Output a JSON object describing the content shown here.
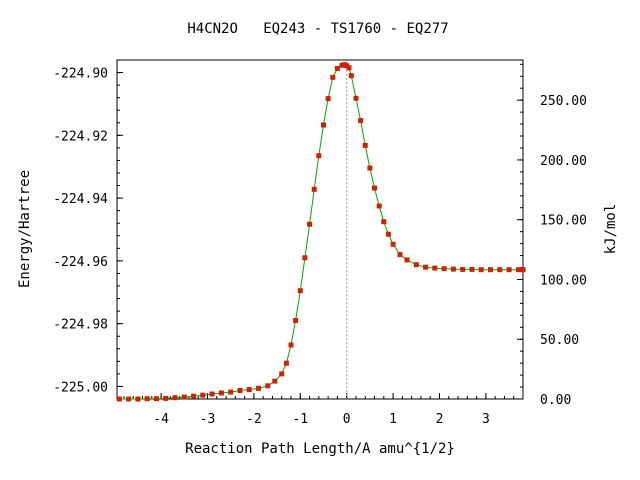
{
  "chart_data": {
    "type": "line",
    "title": "H4CN2O   EQ243 - TS1760 - EQ277",
    "xlabel": "Reaction Path Length/A amu^{1/2}",
    "ylabel_left": "Energy/Hartree",
    "ylabel_right": "kJ/mol",
    "xlim": [
      -4.95,
      3.8
    ],
    "ylim_left": [
      -225.004,
      -224.896
    ],
    "ylim_right": [
      0.0,
      283.6
    ],
    "x_ticks": [
      -4,
      -3,
      -2,
      -1,
      0,
      1,
      2,
      3
    ],
    "x_tick_labels": [
      "-4",
      "-3",
      "-2",
      "-1",
      "0",
      "1",
      "2",
      "3"
    ],
    "y_ticks_left": [
      -225.0,
      -224.98,
      -224.96,
      -224.94,
      -224.92,
      -224.9
    ],
    "y_tick_labels_left": [
      "-225.00",
      "-224.98",
      "-224.96",
      "-224.94",
      "-224.92",
      "-224.90"
    ],
    "y_ticks_right": [
      0,
      50,
      100,
      150,
      200,
      250
    ],
    "y_tick_labels_right": [
      "0.00",
      "50.00",
      "100.00",
      "150.00",
      "200.00",
      "250.00"
    ],
    "ts_x": 0.0,
    "series": [
      {
        "line_color": "#00aa00",
        "marker_color": "#cc2200",
        "x": [
          -4.9,
          -4.7,
          -4.5,
          -4.3,
          -4.1,
          -3.9,
          -3.7,
          -3.5,
          -3.3,
          -3.1,
          -2.9,
          -2.7,
          -2.5,
          -2.3,
          -2.1,
          -1.9,
          -1.7,
          -1.55,
          -1.4,
          -1.3,
          -1.2,
          -1.1,
          -1.0,
          -0.9,
          -0.8,
          -0.7,
          -0.6,
          -0.5,
          -0.4,
          -0.3,
          -0.2,
          -0.1,
          -0.05,
          0.0,
          0.05,
          0.1,
          0.2,
          0.3,
          0.4,
          0.5,
          0.6,
          0.7,
          0.8,
          0.9,
          1.0,
          1.15,
          1.3,
          1.5,
          1.7,
          1.9,
          2.1,
          2.3,
          2.5,
          2.7,
          2.9,
          3.1,
          3.3,
          3.5,
          3.7,
          3.8
        ],
        "y": [
          -225.004,
          -225.004,
          -225.004,
          -225.0039,
          -225.0039,
          -225.0038,
          -225.0036,
          -225.0034,
          -225.0031,
          -225.0028,
          -225.0024,
          -225.0021,
          -225.0018,
          -225.0013,
          -225.001,
          -225.0006,
          -224.9998,
          -224.9983,
          -224.996,
          -224.9926,
          -224.9868,
          -224.979,
          -224.9695,
          -224.959,
          -224.9483,
          -224.9372,
          -224.9265,
          -224.9167,
          -224.9083,
          -224.9015,
          -224.8987,
          -224.8977,
          -224.8975,
          -224.8978,
          -224.8985,
          -224.901,
          -224.9082,
          -224.9153,
          -224.9232,
          -224.9304,
          -224.9368,
          -224.9425,
          -224.9475,
          -224.9515,
          -224.9547,
          -224.958,
          -224.9597,
          -224.9612,
          -224.962,
          -224.9623,
          -224.9625,
          -224.9626,
          -224.9627,
          -224.9627,
          -224.9628,
          -224.9628,
          -224.9628,
          -224.9628,
          -224.9628,
          -224.9628
        ]
      }
    ]
  }
}
